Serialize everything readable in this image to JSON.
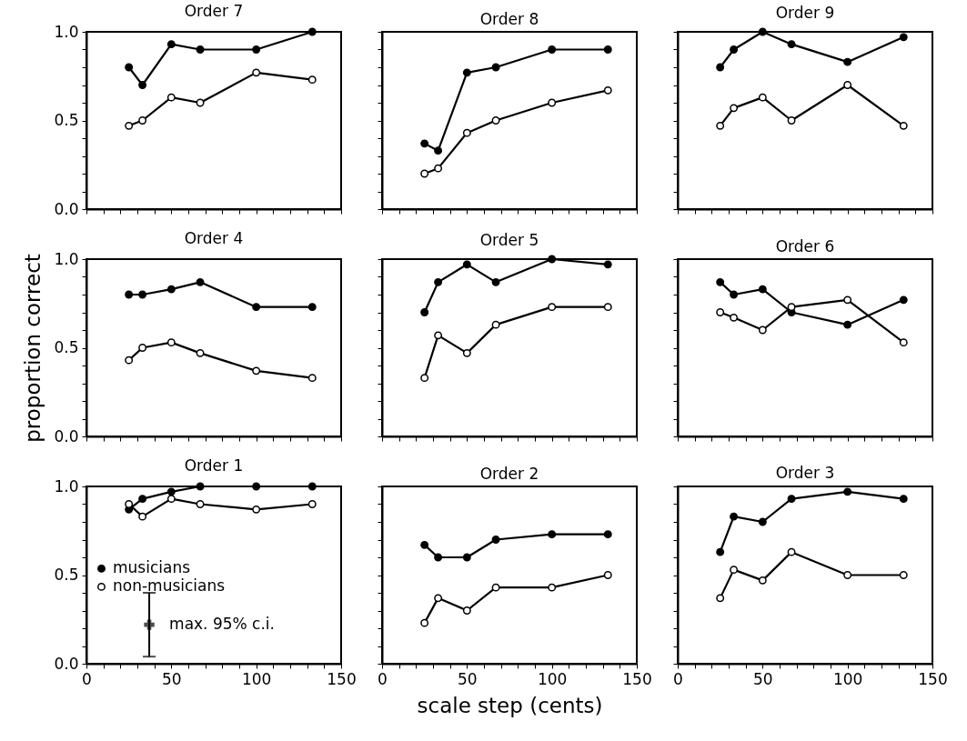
{
  "chart_data": [
    {
      "type": "line",
      "title": "Order 7",
      "x": [
        25,
        33,
        50,
        67,
        100,
        133
      ],
      "xlim": [
        0,
        150
      ],
      "ylim": [
        0,
        1
      ],
      "marker": "circle",
      "tick_labels": "y",
      "xticks": [
        {
          "value": 0,
          "label": null
        },
        {
          "value": 10,
          "label": null
        },
        {
          "value": 20,
          "label": null
        },
        {
          "value": 30,
          "label": null
        },
        {
          "value": 40,
          "label": null
        },
        {
          "value": 50,
          "label": null
        },
        {
          "value": 60,
          "label": null
        },
        {
          "value": 70,
          "label": null
        },
        {
          "value": 80,
          "label": null
        },
        {
          "value": 90,
          "label": null
        },
        {
          "value": 100,
          "label": null
        },
        {
          "value": 110,
          "label": null
        },
        {
          "value": 120,
          "label": null
        },
        {
          "value": 130,
          "label": null
        },
        {
          "value": 140,
          "label": null
        },
        {
          "value": 150,
          "label": null
        }
      ],
      "yticks": [
        {
          "value": 0,
          "label": "0.0"
        },
        {
          "value": 0.1,
          "label": null
        },
        {
          "value": 0.2,
          "label": null
        },
        {
          "value": 0.3,
          "label": null
        },
        {
          "value": 0.4,
          "label": null
        },
        {
          "value": 0.5,
          "label": "0.5"
        },
        {
          "value": 0.6,
          "label": null
        },
        {
          "value": 0.7,
          "label": null
        },
        {
          "value": 0.8,
          "label": null
        },
        {
          "value": 0.9,
          "label": null
        },
        {
          "value": 1,
          "label": "1.0"
        }
      ],
      "series": [
        {
          "color": "#000000",
          "values": [
            0.8,
            0.7,
            0.93,
            0.9,
            0.9,
            1.0
          ]
        },
        {
          "color": "#000000",
          "values": [
            0.47,
            0.5,
            0.63,
            0.6,
            0.77,
            0.73
          ]
        }
      ]
    },
    {
      "type": "line",
      "title": "Order 8",
      "x": [
        25,
        33,
        50,
        67,
        100,
        133
      ],
      "xlim": [
        0,
        150
      ],
      "ylim": [
        0,
        1
      ],
      "marker": "circle",
      "tick_labels": false,
      "xticks": [
        {
          "value": 0,
          "label": null
        },
        {
          "value": 10,
          "label": null
        },
        {
          "value": 20,
          "label": null
        },
        {
          "value": 30,
          "label": null
        },
        {
          "value": 40,
          "label": null
        },
        {
          "value": 50,
          "label": null
        },
        {
          "value": 60,
          "label": null
        },
        {
          "value": 70,
          "label": null
        },
        {
          "value": 80,
          "label": null
        },
        {
          "value": 90,
          "label": null
        },
        {
          "value": 100,
          "label": null
        },
        {
          "value": 110,
          "label": null
        },
        {
          "value": 120,
          "label": null
        },
        {
          "value": 130,
          "label": null
        },
        {
          "value": 140,
          "label": null
        },
        {
          "value": 150,
          "label": null
        }
      ],
      "yticks": [
        {
          "value": 0,
          "label": null
        },
        {
          "value": 0.1,
          "label": null
        },
        {
          "value": 0.2,
          "label": null
        },
        {
          "value": 0.3,
          "label": null
        },
        {
          "value": 0.4,
          "label": null
        },
        {
          "value": 0.5,
          "label": null
        },
        {
          "value": 0.6,
          "label": null
        },
        {
          "value": 0.7,
          "label": null
        },
        {
          "value": 0.8,
          "label": null
        },
        {
          "value": 0.9,
          "label": null
        },
        {
          "value": 1,
          "label": null
        }
      ],
      "series": [
        {
          "color": "#000000",
          "values": [
            0.37,
            0.33,
            0.77,
            0.8,
            0.9,
            0.9
          ]
        },
        {
          "color": "#000000",
          "values": [
            0.2,
            0.23,
            0.43,
            0.5,
            0.6,
            0.67
          ]
        }
      ]
    },
    {
      "type": "line",
      "title": "Order 9",
      "x": [
        25,
        33,
        50,
        67,
        100,
        133
      ],
      "xlim": [
        0,
        150
      ],
      "ylim": [
        0,
        1
      ],
      "marker": "circle",
      "tick_labels": false,
      "xticks": [
        {
          "value": 0,
          "label": null
        },
        {
          "value": 10,
          "label": null
        },
        {
          "value": 20,
          "label": null
        },
        {
          "value": 30,
          "label": null
        },
        {
          "value": 40,
          "label": null
        },
        {
          "value": 50,
          "label": null
        },
        {
          "value": 60,
          "label": null
        },
        {
          "value": 70,
          "label": null
        },
        {
          "value": 80,
          "label": null
        },
        {
          "value": 90,
          "label": null
        },
        {
          "value": 100,
          "label": null
        },
        {
          "value": 110,
          "label": null
        },
        {
          "value": 120,
          "label": null
        },
        {
          "value": 130,
          "label": null
        },
        {
          "value": 140,
          "label": null
        },
        {
          "value": 150,
          "label": null
        }
      ],
      "yticks": [
        {
          "value": 0,
          "label": null
        },
        {
          "value": 0.1,
          "label": null
        },
        {
          "value": 0.2,
          "label": null
        },
        {
          "value": 0.3,
          "label": null
        },
        {
          "value": 0.4,
          "label": null
        },
        {
          "value": 0.5,
          "label": null
        },
        {
          "value": 0.6,
          "label": null
        },
        {
          "value": 0.7,
          "label": null
        },
        {
          "value": 0.8,
          "label": null
        },
        {
          "value": 0.9,
          "label": null
        },
        {
          "value": 1,
          "label": null
        }
      ],
      "series": [
        {
          "color": "#000000",
          "values": [
            0.8,
            0.9,
            1.0,
            0.93,
            0.83,
            0.97
          ]
        },
        {
          "color": "#000000",
          "values": [
            0.47,
            0.57,
            0.63,
            0.5,
            0.7,
            0.47
          ]
        }
      ]
    },
    {
      "type": "line",
      "title": "Order 4",
      "ylabel": "proportion correct",
      "x": [
        25,
        33,
        50,
        67,
        100,
        133
      ],
      "xlim": [
        0,
        150
      ],
      "ylim": [
        0,
        1
      ],
      "marker": "circle",
      "tick_labels": "y",
      "xticks": [
        {
          "value": 0,
          "label": null
        },
        {
          "value": 10,
          "label": null
        },
        {
          "value": 20,
          "label": null
        },
        {
          "value": 30,
          "label": null
        },
        {
          "value": 40,
          "label": null
        },
        {
          "value": 50,
          "label": null
        },
        {
          "value": 60,
          "label": null
        },
        {
          "value": 70,
          "label": null
        },
        {
          "value": 80,
          "label": null
        },
        {
          "value": 90,
          "label": null
        },
        {
          "value": 100,
          "label": null
        },
        {
          "value": 110,
          "label": null
        },
        {
          "value": 120,
          "label": null
        },
        {
          "value": 130,
          "label": null
        },
        {
          "value": 140,
          "label": null
        },
        {
          "value": 150,
          "label": null
        }
      ],
      "yticks": [
        {
          "value": 0,
          "label": "0.0"
        },
        {
          "value": 0.1,
          "label": null
        },
        {
          "value": 0.2,
          "label": null
        },
        {
          "value": 0.3,
          "label": null
        },
        {
          "value": 0.4,
          "label": null
        },
        {
          "value": 0.5,
          "label": "0.5"
        },
        {
          "value": 0.6,
          "label": null
        },
        {
          "value": 0.7,
          "label": null
        },
        {
          "value": 0.8,
          "label": null
        },
        {
          "value": 0.9,
          "label": null
        },
        {
          "value": 1,
          "label": "1.0"
        }
      ],
      "series": [
        {
          "color": "#000000",
          "values": [
            0.8,
            0.8,
            0.83,
            0.87,
            0.73,
            0.73
          ]
        },
        {
          "color": "#000000",
          "values": [
            0.43,
            0.5,
            0.53,
            0.47,
            0.37,
            0.33
          ]
        }
      ]
    },
    {
      "type": "line",
      "title": "Order 5",
      "x": [
        25,
        33,
        50,
        67,
        100,
        133
      ],
      "xlim": [
        0,
        150
      ],
      "ylim": [
        0,
        1
      ],
      "marker": "circle",
      "tick_labels": false,
      "xticks": [
        {
          "value": 0,
          "label": null
        },
        {
          "value": 10,
          "label": null
        },
        {
          "value": 20,
          "label": null
        },
        {
          "value": 30,
          "label": null
        },
        {
          "value": 40,
          "label": null
        },
        {
          "value": 50,
          "label": null
        },
        {
          "value": 60,
          "label": null
        },
        {
          "value": 70,
          "label": null
        },
        {
          "value": 80,
          "label": null
        },
        {
          "value": 90,
          "label": null
        },
        {
          "value": 100,
          "label": null
        },
        {
          "value": 110,
          "label": null
        },
        {
          "value": 120,
          "label": null
        },
        {
          "value": 130,
          "label": null
        },
        {
          "value": 140,
          "label": null
        },
        {
          "value": 150,
          "label": null
        }
      ],
      "yticks": [
        {
          "value": 0,
          "label": null
        },
        {
          "value": 0.1,
          "label": null
        },
        {
          "value": 0.2,
          "label": null
        },
        {
          "value": 0.3,
          "label": null
        },
        {
          "value": 0.4,
          "label": null
        },
        {
          "value": 0.5,
          "label": null
        },
        {
          "value": 0.6,
          "label": null
        },
        {
          "value": 0.7,
          "label": null
        },
        {
          "value": 0.8,
          "label": null
        },
        {
          "value": 0.9,
          "label": null
        },
        {
          "value": 1,
          "label": null
        }
      ],
      "series": [
        {
          "color": "#000000",
          "values": [
            0.7,
            0.87,
            0.97,
            0.87,
            1.0,
            0.97
          ]
        },
        {
          "color": "#000000",
          "values": [
            0.33,
            0.57,
            0.47,
            0.63,
            0.73,
            0.73
          ]
        }
      ]
    },
    {
      "type": "line",
      "title": "Order 6",
      "x": [
        25,
        33,
        50,
        67,
        100,
        133
      ],
      "xlim": [
        0,
        150
      ],
      "ylim": [
        0,
        1
      ],
      "marker": "circle",
      "tick_labels": false,
      "xticks": [
        {
          "value": 0,
          "label": null
        },
        {
          "value": 10,
          "label": null
        },
        {
          "value": 20,
          "label": null
        },
        {
          "value": 30,
          "label": null
        },
        {
          "value": 40,
          "label": null
        },
        {
          "value": 50,
          "label": null
        },
        {
          "value": 60,
          "label": null
        },
        {
          "value": 70,
          "label": null
        },
        {
          "value": 80,
          "label": null
        },
        {
          "value": 90,
          "label": null
        },
        {
          "value": 100,
          "label": null
        },
        {
          "value": 110,
          "label": null
        },
        {
          "value": 120,
          "label": null
        },
        {
          "value": 130,
          "label": null
        },
        {
          "value": 140,
          "label": null
        },
        {
          "value": 150,
          "label": null
        }
      ],
      "yticks": [
        {
          "value": 0,
          "label": null
        },
        {
          "value": 0.1,
          "label": null
        },
        {
          "value": 0.2,
          "label": null
        },
        {
          "value": 0.3,
          "label": null
        },
        {
          "value": 0.4,
          "label": null
        },
        {
          "value": 0.5,
          "label": null
        },
        {
          "value": 0.6,
          "label": null
        },
        {
          "value": 0.7,
          "label": null
        },
        {
          "value": 0.8,
          "label": null
        },
        {
          "value": 0.9,
          "label": null
        },
        {
          "value": 1,
          "label": null
        }
      ],
      "series": [
        {
          "color": "#000000",
          "values": [
            0.87,
            0.8,
            0.83,
            0.7,
            0.63,
            0.77
          ]
        },
        {
          "color": "#000000",
          "values": [
            0.7,
            0.67,
            0.6,
            0.73,
            0.77,
            0.53
          ]
        }
      ]
    },
    {
      "type": "line",
      "title": "Order 1",
      "x": [
        25,
        33,
        50,
        67,
        100,
        133
      ],
      "xlim": [
        0,
        150
      ],
      "ylim": [
        0,
        1
      ],
      "marker": "circle",
      "legend": "left",
      "xticks": [
        0,
        {
          "value": 10,
          "label": null
        },
        {
          "value": 20,
          "label": null
        },
        {
          "value": 30,
          "label": null
        },
        {
          "value": 40,
          "label": null
        },
        50,
        {
          "value": 60,
          "label": null
        },
        {
          "value": 70,
          "label": null
        },
        {
          "value": 80,
          "label": null
        },
        {
          "value": 90,
          "label": null
        },
        100,
        {
          "value": 110,
          "label": null
        },
        {
          "value": 120,
          "label": null
        },
        {
          "value": 130,
          "label": null
        },
        {
          "value": 140,
          "label": null
        },
        150
      ],
      "yticks": [
        {
          "value": 0,
          "label": "0.0"
        },
        {
          "value": 0.1,
          "label": null
        },
        {
          "value": 0.2,
          "label": null
        },
        {
          "value": 0.3,
          "label": null
        },
        {
          "value": 0.4,
          "label": null
        },
        {
          "value": 0.5,
          "label": "0.5"
        },
        {
          "value": 0.6,
          "label": null
        },
        {
          "value": 0.7,
          "label": null
        },
        {
          "value": 0.8,
          "label": null
        },
        {
          "value": 0.9,
          "label": null
        },
        {
          "value": 1,
          "label": "1.0"
        }
      ],
      "series": [
        {
          "name": "musicians",
          "color": "#000000",
          "values": [
            0.87,
            0.93,
            0.97,
            1.0,
            1.0,
            1.0
          ]
        },
        {
          "name": "non-musicians",
          "color": "#000000",
          "values": [
            0.9,
            0.83,
            0.93,
            0.9,
            0.87,
            0.9
          ]
        },
        {
          "name": "max. 95% c.i.",
          "type": "scatter",
          "marker": "cross",
          "color": "#000000",
          "x": [
            37
          ],
          "values": [
            0.22
          ],
          "errors": [
            [
              0.04,
              0.4
            ]
          ]
        }
      ]
    },
    {
      "type": "line",
      "title": "Order 2",
      "xlabel": "scale step (cents)",
      "x": [
        25,
        33,
        50,
        67,
        100,
        133
      ],
      "xlim": [
        0,
        150
      ],
      "ylim": [
        0,
        1
      ],
      "marker": "circle",
      "tick_labels": "x",
      "xticks": [
        0,
        {
          "value": 10,
          "label": null
        },
        {
          "value": 20,
          "label": null
        },
        {
          "value": 30,
          "label": null
        },
        {
          "value": 40,
          "label": null
        },
        50,
        {
          "value": 60,
          "label": null
        },
        {
          "value": 70,
          "label": null
        },
        {
          "value": 80,
          "label": null
        },
        {
          "value": 90,
          "label": null
        },
        100,
        {
          "value": 110,
          "label": null
        },
        {
          "value": 120,
          "label": null
        },
        {
          "value": 130,
          "label": null
        },
        {
          "value": 140,
          "label": null
        },
        150
      ],
      "yticks": [
        {
          "value": 0,
          "label": null
        },
        {
          "value": 0.1,
          "label": null
        },
        {
          "value": 0.2,
          "label": null
        },
        {
          "value": 0.3,
          "label": null
        },
        {
          "value": 0.4,
          "label": null
        },
        {
          "value": 0.5,
          "label": null
        },
        {
          "value": 0.6,
          "label": null
        },
        {
          "value": 0.7,
          "label": null
        },
        {
          "value": 0.8,
          "label": null
        },
        {
          "value": 0.9,
          "label": null
        },
        {
          "value": 1,
          "label": null
        }
      ],
      "series": [
        {
          "color": "#000000",
          "values": [
            0.67,
            0.6,
            0.6,
            0.7,
            0.73,
            0.73
          ]
        },
        {
          "color": "#000000",
          "values": [
            0.23,
            0.37,
            0.3,
            0.43,
            0.43,
            0.5
          ]
        }
      ]
    },
    {
      "type": "line",
      "title": "Order 3",
      "x": [
        25,
        33,
        50,
        67,
        100,
        133
      ],
      "xlim": [
        0,
        150
      ],
      "ylim": [
        0,
        1
      ],
      "marker": "circle",
      "tick_labels": "x",
      "xticks": [
        0,
        {
          "value": 10,
          "label": null
        },
        {
          "value": 20,
          "label": null
        },
        {
          "value": 30,
          "label": null
        },
        {
          "value": 40,
          "label": null
        },
        50,
        {
          "value": 60,
          "label": null
        },
        {
          "value": 70,
          "label": null
        },
        {
          "value": 80,
          "label": null
        },
        {
          "value": 90,
          "label": null
        },
        100,
        {
          "value": 110,
          "label": null
        },
        {
          "value": 120,
          "label": null
        },
        {
          "value": 130,
          "label": null
        },
        {
          "value": 140,
          "label": null
        },
        150
      ],
      "yticks": [
        {
          "value": 0,
          "label": null
        },
        {
          "value": 0.1,
          "label": null
        },
        {
          "value": 0.2,
          "label": null
        },
        {
          "value": 0.3,
          "label": null
        },
        {
          "value": 0.4,
          "label": null
        },
        {
          "value": 0.5,
          "label": null
        },
        {
          "value": 0.6,
          "label": null
        },
        {
          "value": 0.7,
          "label": null
        },
        {
          "value": 0.8,
          "label": null
        },
        {
          "value": 0.9,
          "label": null
        },
        {
          "value": 1,
          "label": null
        }
      ],
      "series": [
        {
          "color": "#000000",
          "values": [
            0.63,
            0.83,
            0.8,
            0.93,
            0.97,
            0.93
          ]
        },
        {
          "color": "#000000",
          "values": [
            0.37,
            0.53,
            0.47,
            0.63,
            0.5,
            0.5
          ]
        }
      ]
    }
  ]
}
